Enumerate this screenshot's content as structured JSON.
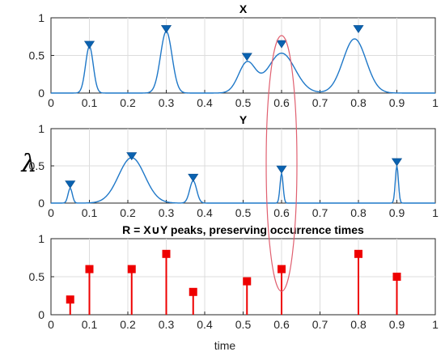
{
  "figure": {
    "ylabel": "λ",
    "xlabel": "time"
  },
  "chart_data": [
    {
      "type": "line",
      "title": "X",
      "xlim": [
        0,
        1
      ],
      "ylim": [
        0,
        1
      ],
      "xticks": [
        0,
        0.1,
        0.2,
        0.3,
        0.4,
        0.5,
        0.6,
        0.7,
        0.8,
        0.9,
        1
      ],
      "yticks": [
        0,
        0.5,
        1
      ],
      "grid": true,
      "color": "#1f78c8",
      "components": [
        {
          "center": 0.1,
          "amplitude": 0.62,
          "sigma": 0.01
        },
        {
          "center": 0.3,
          "amplitude": 0.82,
          "sigma": 0.015
        },
        {
          "center": 0.51,
          "amplitude": 0.4,
          "sigma": 0.022
        },
        {
          "center": 0.6,
          "amplitude": 0.53,
          "sigma": 0.035
        },
        {
          "center": 0.79,
          "amplitude": 0.72,
          "sigma": 0.03
        }
      ],
      "markers": {
        "shape": "triangle-down",
        "points": [
          {
            "x": 0.1,
            "y": 0.64
          },
          {
            "x": 0.3,
            "y": 0.85
          },
          {
            "x": 0.51,
            "y": 0.48
          },
          {
            "x": 0.6,
            "y": 0.65
          },
          {
            "x": 0.8,
            "y": 0.85
          }
        ]
      },
      "has_x_label": false
    },
    {
      "type": "line",
      "title": "Y",
      "xlim": [
        0,
        1
      ],
      "ylim": [
        0,
        1
      ],
      "xticks": [
        0,
        0.1,
        0.2,
        0.3,
        0.4,
        0.5,
        0.6,
        0.7,
        0.8,
        0.9,
        1
      ],
      "yticks": [
        0,
        0.5,
        1
      ],
      "grid": true,
      "color": "#1f78c8",
      "components": [
        {
          "center": 0.05,
          "amplitude": 0.2,
          "sigma": 0.0055
        },
        {
          "center": 0.21,
          "amplitude": 0.61,
          "sigma": 0.034
        },
        {
          "center": 0.37,
          "amplitude": 0.3,
          "sigma": 0.009
        },
        {
          "center": 0.6,
          "amplitude": 0.4,
          "sigma": 0.004
        },
        {
          "center": 0.9,
          "amplitude": 0.5,
          "sigma": 0.004
        }
      ],
      "markers": {
        "shape": "triangle-down",
        "points": [
          {
            "x": 0.05,
            "y": 0.25
          },
          {
            "x": 0.21,
            "y": 0.63
          },
          {
            "x": 0.37,
            "y": 0.34
          },
          {
            "x": 0.6,
            "y": 0.45
          },
          {
            "x": 0.9,
            "y": 0.55
          }
        ]
      },
      "has_x_label": false
    },
    {
      "type": "stem",
      "title": "R = X∪Y peaks, preserving occurrence times",
      "xlim": [
        0,
        1
      ],
      "ylim": [
        0,
        1
      ],
      "xticks": [
        0,
        0.1,
        0.2,
        0.3,
        0.4,
        0.5,
        0.6,
        0.7,
        0.8,
        0.9,
        1
      ],
      "yticks": [
        0,
        0.5,
        1
      ],
      "grid": true,
      "color": "#ee0000",
      "points": [
        {
          "x": 0.05,
          "y": 0.2
        },
        {
          "x": 0.1,
          "y": 0.6
        },
        {
          "x": 0.21,
          "y": 0.6
        },
        {
          "x": 0.3,
          "y": 0.8
        },
        {
          "x": 0.37,
          "y": 0.3
        },
        {
          "x": 0.51,
          "y": 0.44
        },
        {
          "x": 0.6,
          "y": 0.6
        },
        {
          "x": 0.8,
          "y": 0.8
        },
        {
          "x": 0.9,
          "y": 0.5
        }
      ],
      "has_x_label": true
    }
  ],
  "highlight": {
    "shape": "ellipse",
    "color": "#e06070",
    "x_center": 0.6
  }
}
